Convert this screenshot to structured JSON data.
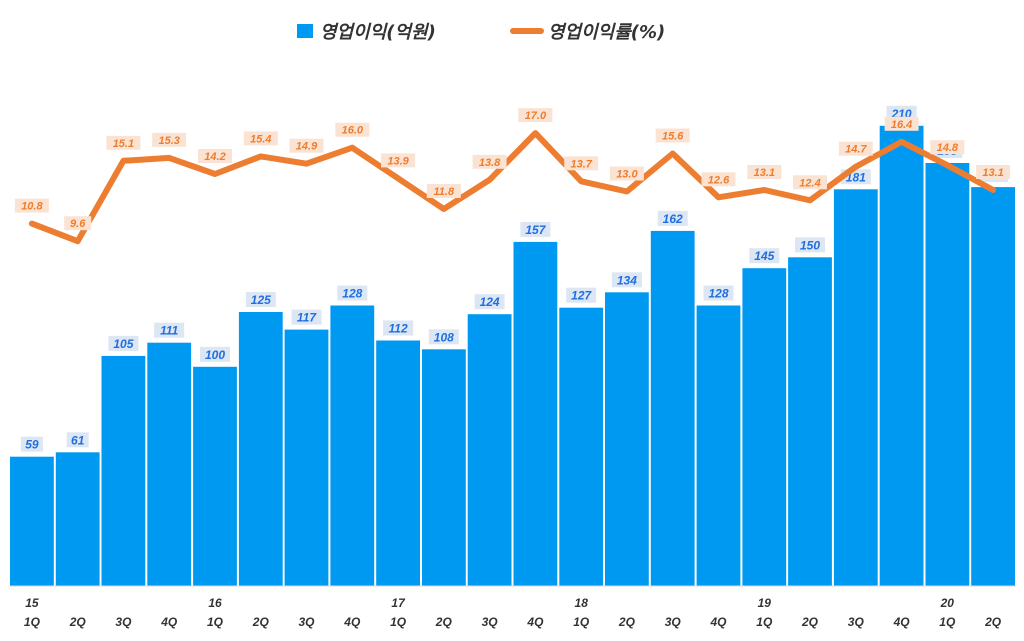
{
  "colors": {
    "bar": "#0099f2",
    "line": "#ed7d31"
  },
  "chart_data": {
    "type": "bar",
    "legend": {
      "bar_series": "영업이익(억원)",
      "line_series": "영업이익률(%)",
      "placement": "top-center"
    },
    "categories": [
      "15 1Q",
      "2Q",
      "3Q",
      "4Q",
      "16 1Q",
      "2Q",
      "3Q",
      "4Q",
      "17 1Q",
      "2Q",
      "3Q",
      "4Q",
      "18 1Q",
      "2Q",
      "3Q",
      "4Q",
      "19 1Q",
      "2Q",
      "3Q",
      "4Q",
      "20 1Q",
      "2Q"
    ],
    "tick_labels": [
      {
        "year": "15",
        "quarter": "1Q"
      },
      {
        "year": "",
        "quarter": "2Q"
      },
      {
        "year": "",
        "quarter": "3Q"
      },
      {
        "year": "",
        "quarter": "4Q"
      },
      {
        "year": "16",
        "quarter": "1Q"
      },
      {
        "year": "",
        "quarter": "2Q"
      },
      {
        "year": "",
        "quarter": "3Q"
      },
      {
        "year": "",
        "quarter": "4Q"
      },
      {
        "year": "17",
        "quarter": "1Q"
      },
      {
        "year": "",
        "quarter": "2Q"
      },
      {
        "year": "",
        "quarter": "3Q"
      },
      {
        "year": "",
        "quarter": "4Q"
      },
      {
        "year": "18",
        "quarter": "1Q"
      },
      {
        "year": "",
        "quarter": "2Q"
      },
      {
        "year": "",
        "quarter": "3Q"
      },
      {
        "year": "",
        "quarter": "4Q"
      },
      {
        "year": "19",
        "quarter": "1Q"
      },
      {
        "year": "",
        "quarter": "2Q"
      },
      {
        "year": "",
        "quarter": "3Q"
      },
      {
        "year": "",
        "quarter": "4Q"
      },
      {
        "year": "20",
        "quarter": "1Q"
      },
      {
        "year": "",
        "quarter": "2Q"
      }
    ],
    "series": [
      {
        "name": "영업이익(억원)",
        "type": "bar",
        "values": [
          59,
          61,
          105,
          111,
          100,
          125,
          117,
          128,
          112,
          108,
          124,
          157,
          127,
          134,
          162,
          128,
          145,
          150,
          181,
          210,
          193,
          182
        ]
      },
      {
        "name": "영업이익률(%)",
        "type": "line",
        "values": [
          10.8,
          9.6,
          15.1,
          15.3,
          14.2,
          15.4,
          14.9,
          16.0,
          13.9,
          11.8,
          13.8,
          17.0,
          13.7,
          13.0,
          15.6,
          12.6,
          13.1,
          12.4,
          14.7,
          16.4,
          14.8,
          13.1
        ],
        "value_labels": [
          "10.8",
          "9.6",
          "15.1",
          "15.3",
          "14.2",
          "15.4",
          "14.9",
          "16.0",
          "13.9",
          "11.8",
          "13.8",
          "17.0",
          "13.7",
          "13.0",
          "15.6",
          "12.6",
          "13.1",
          "12.4",
          "14.7",
          "16.4",
          "14.8",
          "13.1"
        ]
      }
    ],
    "bar_axis_range": [
      0,
      240
    ],
    "line_axis_range": [
      -14,
      22
    ],
    "grid": false,
    "title": "",
    "xlabel": "",
    "ylabel": ""
  }
}
